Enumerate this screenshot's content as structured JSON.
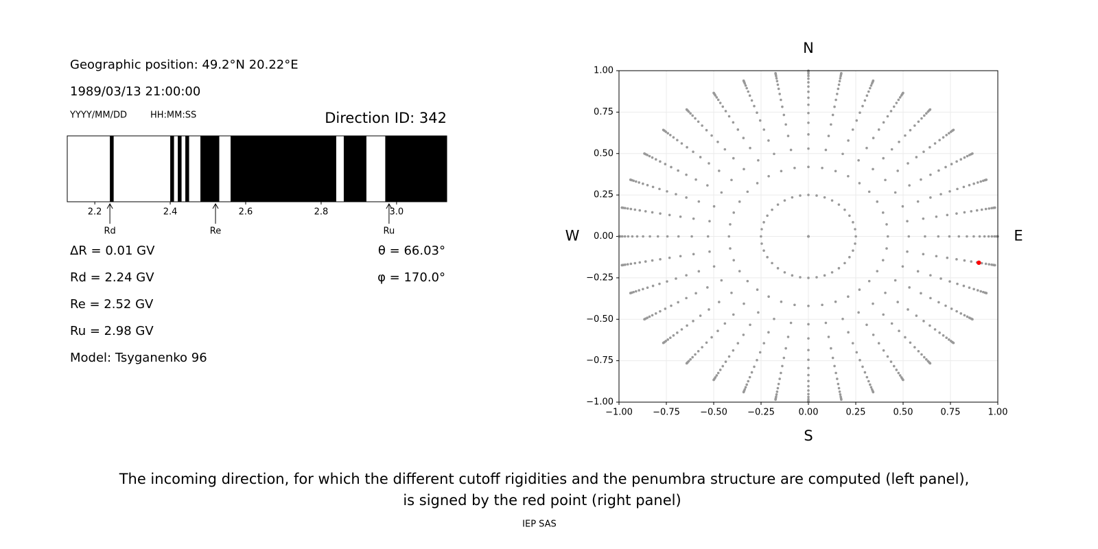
{
  "info": {
    "position": "Geographic position: 49.2°N 20.22°E",
    "datetime": "1989/03/13 21:00:00",
    "date_format": "YYYY/MM/DD",
    "time_format": "HH:MM:SS",
    "direction_id": "Direction ID: 342",
    "delta_r": "ΔR = 0.01 GV",
    "rd": "Rd = 2.24 GV",
    "re": "Re = 2.52 GV",
    "ru": "Ru = 2.98 GV",
    "model": "Model: Tsyganenko 96",
    "theta": "θ = 66.03°",
    "phi": "φ = 170.0°"
  },
  "chart_data": [
    {
      "type": "penumbra",
      "xlim": [
        2.127,
        3.133
      ],
      "xticks": [
        2.2,
        2.4,
        2.6,
        2.8,
        {
          "value": 3,
          "label": "3.0"
        }
      ],
      "color": "#000000",
      "bands": [
        [
          2.24,
          2.25
        ],
        [
          2.4,
          2.41
        ],
        [
          2.42,
          2.43
        ],
        [
          2.44,
          2.45
        ],
        [
          2.48,
          2.53
        ],
        [
          2.56,
          2.84
        ],
        [
          2.86,
          2.92
        ],
        [
          2.97,
          3.133
        ]
      ],
      "markers": [
        {
          "name": "Rd",
          "value": 2.24
        },
        {
          "name": "Re",
          "value": 2.52
        },
        {
          "name": "Ru",
          "value": 2.98
        }
      ]
    },
    {
      "type": "sky",
      "xlim": [
        -1,
        1
      ],
      "ylim": [
        -1,
        1
      ],
      "grid": true,
      "color": "#999999",
      "xticks": [
        {
          "value": -1,
          "label": "−1.00"
        },
        {
          "value": -0.75,
          "label": "−0.75"
        },
        {
          "value": -0.5,
          "label": "−0.50"
        },
        {
          "value": -0.25,
          "label": "−0.25"
        },
        {
          "value": 0,
          "label": "0.00"
        },
        {
          "value": 0.25,
          "label": "0.25"
        },
        {
          "value": 0.5,
          "label": "0.50"
        },
        {
          "value": 0.75,
          "label": "0.75"
        },
        {
          "value": 1,
          "label": "1.00"
        }
      ],
      "yticks": [
        {
          "value": -1,
          "label": "−1.00"
        },
        {
          "value": -0.75,
          "label": "−0.75"
        },
        {
          "value": -0.5,
          "label": "−0.50"
        },
        {
          "value": -0.25,
          "label": "−0.25"
        },
        {
          "value": 0,
          "label": "0.00"
        },
        {
          "value": 0.25,
          "label": "0.25"
        },
        {
          "value": 0.5,
          "label": "0.50"
        },
        {
          "value": 0.75,
          "label": "0.75"
        },
        {
          "value": 1,
          "label": "1.00"
        }
      ],
      "compass": {
        "north": "N",
        "south": "S",
        "west": "W",
        "east": "E"
      },
      "zenith": [
        0,
        14.5,
        24.8,
        32.0,
        38.0,
        43.3,
        48.1,
        52.6,
        56.8,
        60.8,
        64.7,
        68.4,
        72.1,
        75.6,
        79.2,
        82.6,
        86.1,
        89.5
      ],
      "azimuth": [
        0,
        10,
        20,
        30,
        40,
        50,
        60,
        70,
        80,
        90,
        100,
        110,
        120,
        130,
        140,
        150,
        160,
        170,
        180,
        190,
        200,
        210,
        220,
        230,
        240,
        250,
        260,
        270,
        280,
        290,
        300,
        310,
        320,
        330,
        340,
        350
      ],
      "highlight": {
        "theta": 66.03,
        "phi": 170,
        "color": "#ff0000"
      }
    }
  ],
  "caption": {
    "line1": "The incoming direction, for which the different cutoff rigidities and the penumbra structure are computed (left panel),",
    "line2": "is signed by the red point (right panel)",
    "credit": "IEP SAS"
  }
}
